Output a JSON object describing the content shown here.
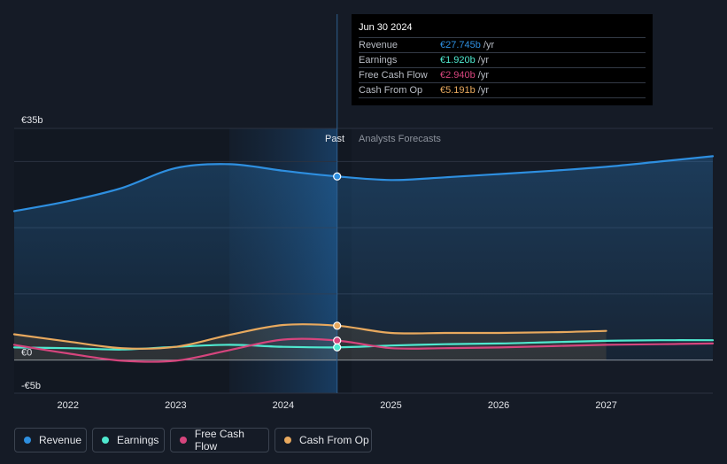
{
  "colors": {
    "revenue": "#2e8fe0",
    "earnings": "#4fe8cf",
    "fcf": "#d6457d",
    "cfo": "#e8a95e"
  },
  "labels": {
    "past": "Past",
    "forecast": "Analysts Forecasts"
  },
  "tooltip": {
    "date": "Jun 30 2024",
    "rows": [
      {
        "label": "Revenue",
        "value": "€27.745b",
        "unit": "/yr"
      },
      {
        "label": "Earnings",
        "value": "€1.920b",
        "unit": "/yr"
      },
      {
        "label": "Free Cash Flow",
        "value": "€2.940b",
        "unit": "/yr"
      },
      {
        "label": "Cash From Op",
        "value": "€5.191b",
        "unit": "/yr"
      }
    ]
  },
  "legend": [
    "Revenue",
    "Earnings",
    "Free Cash Flow",
    "Cash From Op"
  ],
  "chart_data": {
    "type": "line",
    "title": "",
    "xlabel": "",
    "ylabel": "",
    "xlim": [
      2021.5,
      2027.99
    ],
    "ylim": [
      -5,
      35
    ],
    "y_ticks": [
      {
        "v": 35,
        "label": "€35b"
      },
      {
        "v": 0,
        "label": "€0"
      },
      {
        "v": -5,
        "label": "-€5b"
      }
    ],
    "x_ticks": [
      {
        "v": 2022,
        "label": "2022"
      },
      {
        "v": 2023,
        "label": "2023"
      },
      {
        "v": 2024,
        "label": "2024"
      },
      {
        "v": 2025,
        "label": "2025"
      },
      {
        "v": 2026,
        "label": "2026"
      },
      {
        "v": 2027,
        "label": "2027"
      }
    ],
    "gridlines": [
      35,
      30,
      20,
      10,
      0,
      -5
    ],
    "highlight_range": [
      2023.5,
      2024.5
    ],
    "divider_x": 2024.5,
    "series": [
      {
        "name": "Revenue",
        "key": "revenue",
        "fill": true,
        "points": [
          [
            2021.5,
            22.5
          ],
          [
            2022.0,
            24.0
          ],
          [
            2022.5,
            26.0
          ],
          [
            2023.0,
            29.0
          ],
          [
            2023.5,
            29.6
          ],
          [
            2024.0,
            28.6
          ],
          [
            2024.5,
            27.745
          ],
          [
            2025.0,
            27.2
          ],
          [
            2025.5,
            27.6
          ],
          [
            2026.0,
            28.1
          ],
          [
            2026.5,
            28.6
          ],
          [
            2027.0,
            29.2
          ],
          [
            2027.5,
            30.0
          ],
          [
            2027.99,
            30.8
          ]
        ]
      },
      {
        "name": "Earnings",
        "key": "earnings",
        "fill": false,
        "points": [
          [
            2021.5,
            1.9
          ],
          [
            2022.0,
            1.8
          ],
          [
            2022.5,
            1.6
          ],
          [
            2023.0,
            2.0
          ],
          [
            2023.5,
            2.3
          ],
          [
            2024.0,
            2.0
          ],
          [
            2024.5,
            1.92
          ],
          [
            2025.0,
            2.2
          ],
          [
            2025.5,
            2.4
          ],
          [
            2026.0,
            2.5
          ],
          [
            2026.5,
            2.7
          ],
          [
            2027.0,
            2.9
          ],
          [
            2027.5,
            3.0
          ],
          [
            2027.99,
            3.0
          ]
        ]
      },
      {
        "name": "Free Cash Flow",
        "key": "fcf",
        "fill": false,
        "points": [
          [
            2021.5,
            2.3
          ],
          [
            2022.0,
            1.0
          ],
          [
            2022.5,
            -0.1
          ],
          [
            2023.0,
            -0.1
          ],
          [
            2023.5,
            1.5
          ],
          [
            2024.0,
            3.1
          ],
          [
            2024.5,
            2.94
          ],
          [
            2025.0,
            1.8
          ],
          [
            2025.5,
            1.8
          ],
          [
            2026.0,
            1.9
          ],
          [
            2026.5,
            2.1
          ],
          [
            2027.0,
            2.3
          ],
          [
            2027.5,
            2.4
          ],
          [
            2027.99,
            2.5
          ]
        ]
      },
      {
        "name": "Cash From Op",
        "key": "cfo",
        "fill": true,
        "points": [
          [
            2021.5,
            3.9
          ],
          [
            2022.0,
            2.8
          ],
          [
            2022.5,
            1.8
          ],
          [
            2023.0,
            2.0
          ],
          [
            2023.5,
            3.8
          ],
          [
            2024.0,
            5.3
          ],
          [
            2024.5,
            5.191
          ],
          [
            2025.0,
            4.1
          ],
          [
            2025.5,
            4.1
          ],
          [
            2026.0,
            4.1
          ],
          [
            2026.5,
            4.2
          ],
          [
            2027.0,
            4.4
          ]
        ]
      }
    ],
    "markers": [
      {
        "key": "revenue",
        "x": 2024.5,
        "y": 27.745
      },
      {
        "key": "cfo",
        "x": 2024.5,
        "y": 5.191
      },
      {
        "key": "fcf",
        "x": 2024.5,
        "y": 2.94
      },
      {
        "key": "earnings",
        "x": 2024.5,
        "y": 1.92
      }
    ]
  }
}
